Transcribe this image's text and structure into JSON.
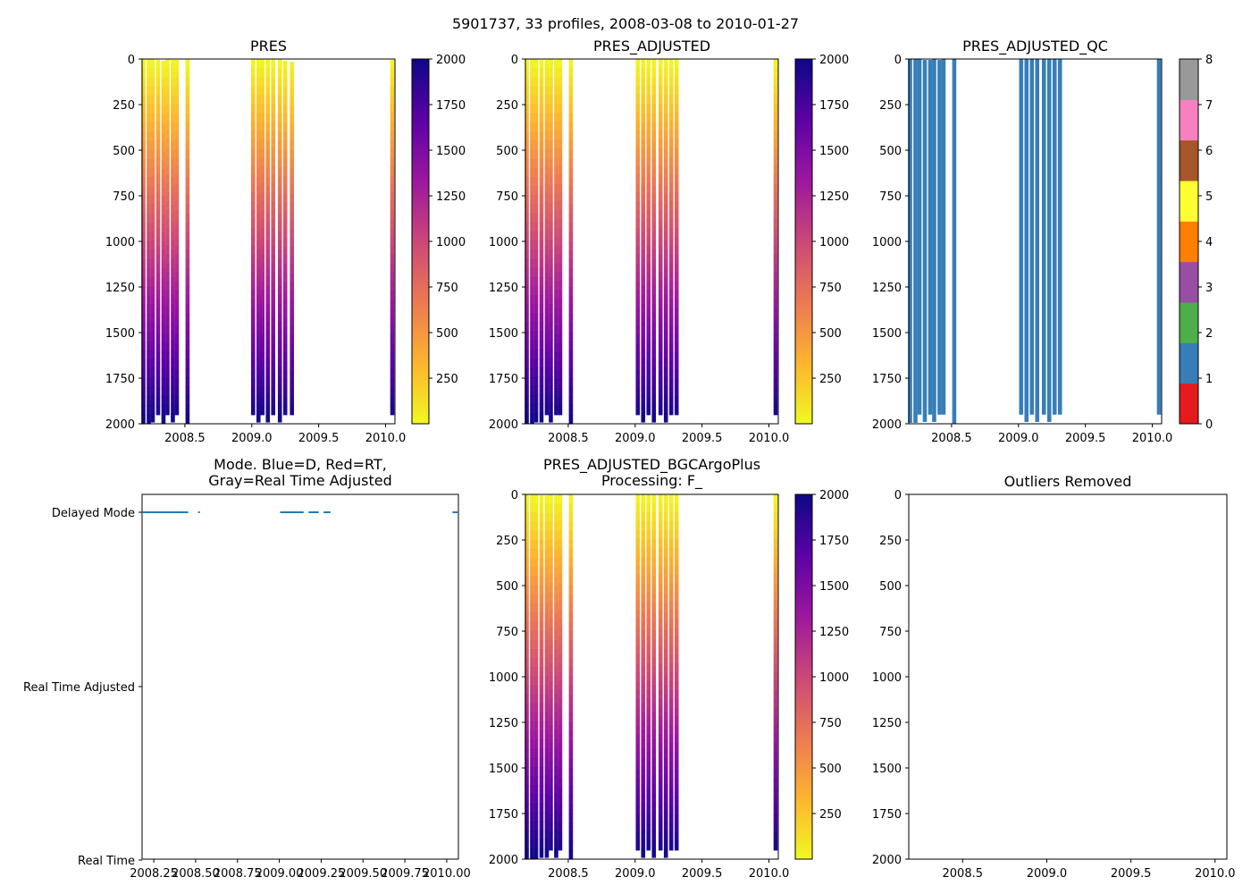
{
  "figure_title": "5901737, 33 profiles, 2008-03-08 to 2010-01-27",
  "colors": {
    "cmap_plasma": [
      "#f0f921",
      "#fdb42f",
      "#ed7953",
      "#cc4778",
      "#9c179e",
      "#5c01a6",
      "#0d0887"
    ],
    "qc_levels": [
      "#e41a1c",
      "#377eb8",
      "#4daf4a",
      "#984ea3",
      "#ff7f00",
      "#ffff33",
      "#a65628",
      "#f781bf",
      "#999999"
    ],
    "mode_delayed": "#1f77b4",
    "qc_fill": "#377eb8"
  },
  "chart_data": [
    {
      "id": "pres",
      "type": "heatmap",
      "title": "PRES",
      "xlim": [
        2008.18,
        2010.07
      ],
      "ylim": [
        2000,
        0
      ],
      "xticks": [
        2008.5,
        2009.0,
        2009.5,
        2010.0
      ],
      "xticklabels": [
        "2008.5",
        "2009.0",
        "2009.5",
        "2010.0"
      ],
      "yticks": [
        0,
        250,
        500,
        750,
        1000,
        1250,
        1500,
        1750,
        2000
      ],
      "yticklabels": [
        "0",
        "250",
        "500",
        "750",
        "1000",
        "1250",
        "1500",
        "1750",
        "2000"
      ],
      "colorbar": {
        "cmap": "plasma_r",
        "vmin": 0,
        "vmax": 2000,
        "ticks": [
          250,
          500,
          750,
          1000,
          1250,
          1500,
          1750,
          2000
        ],
        "ticklabels": [
          "250",
          "500",
          "750",
          "1000",
          "1250",
          "1500",
          "1750",
          "2000"
        ]
      },
      "profiles": [
        {
          "t": 2008.19,
          "top": 0,
          "bottom": 2000
        },
        {
          "t": 2008.23,
          "top": 0,
          "bottom": 2000
        },
        {
          "t": 2008.26,
          "top": 0,
          "bottom": 1990
        },
        {
          "t": 2008.3,
          "top": 5,
          "bottom": 1950
        },
        {
          "t": 2008.34,
          "top": 10,
          "bottom": 1995
        },
        {
          "t": 2008.37,
          "top": 0,
          "bottom": 1950
        },
        {
          "t": 2008.41,
          "top": 5,
          "bottom": 1990
        },
        {
          "t": 2008.44,
          "top": 5,
          "bottom": 1950
        },
        {
          "t": 2008.52,
          "top": 0,
          "bottom": 1995
        },
        {
          "t": 2009.01,
          "top": 0,
          "bottom": 1950
        },
        {
          "t": 2009.05,
          "top": 0,
          "bottom": 1990
        },
        {
          "t": 2009.08,
          "top": 0,
          "bottom": 1950
        },
        {
          "t": 2009.12,
          "top": 0,
          "bottom": 1990
        },
        {
          "t": 2009.16,
          "top": 0,
          "bottom": 1950
        },
        {
          "t": 2009.21,
          "top": 0,
          "bottom": 1990
        },
        {
          "t": 2009.25,
          "top": 10,
          "bottom": 1950
        },
        {
          "t": 2009.3,
          "top": 15,
          "bottom": 1950
        },
        {
          "t": 2010.05,
          "top": 5,
          "bottom": 1950
        }
      ]
    },
    {
      "id": "pres_adjusted",
      "type": "heatmap",
      "title": "PRES_ADJUSTED",
      "xlim": [
        2008.18,
        2010.07
      ],
      "ylim": [
        2000,
        0
      ],
      "xticks": [
        2008.5,
        2009.0,
        2009.5,
        2010.0
      ],
      "xticklabels": [
        "2008.5",
        "2009.0",
        "2009.5",
        "2010.0"
      ],
      "yticks": [
        0,
        250,
        500,
        750,
        1000,
        1250,
        1500,
        1750,
        2000
      ],
      "yticklabels": [
        "0",
        "250",
        "500",
        "750",
        "1000",
        "1250",
        "1500",
        "1750",
        "2000"
      ],
      "colorbar": {
        "cmap": "plasma_r",
        "vmin": 0,
        "vmax": 2000,
        "ticks": [
          250,
          500,
          750,
          1000,
          1250,
          1500,
          1750,
          2000
        ],
        "ticklabels": [
          "250",
          "500",
          "750",
          "1000",
          "1250",
          "1500",
          "1750",
          "2000"
        ]
      },
      "profiles": [
        {
          "t": 2008.19,
          "top": 0,
          "bottom": 1995
        },
        {
          "t": 2008.23,
          "top": 0,
          "bottom": 1995
        },
        {
          "t": 2008.26,
          "top": 0,
          "bottom": 1990
        },
        {
          "t": 2008.3,
          "top": 5,
          "bottom": 1990
        },
        {
          "t": 2008.34,
          "top": 5,
          "bottom": 1950
        },
        {
          "t": 2008.37,
          "top": 0,
          "bottom": 1990
        },
        {
          "t": 2008.41,
          "top": 5,
          "bottom": 1950
        },
        {
          "t": 2008.44,
          "top": 0,
          "bottom": 1950
        },
        {
          "t": 2008.52,
          "top": 0,
          "bottom": 2000
        },
        {
          "t": 2009.02,
          "top": 0,
          "bottom": 1950
        },
        {
          "t": 2009.06,
          "top": 0,
          "bottom": 1990
        },
        {
          "t": 2009.1,
          "top": 0,
          "bottom": 1950
        },
        {
          "t": 2009.14,
          "top": 0,
          "bottom": 1990
        },
        {
          "t": 2009.19,
          "top": 0,
          "bottom": 1950
        },
        {
          "t": 2009.23,
          "top": 0,
          "bottom": 1990
        },
        {
          "t": 2009.27,
          "top": 0,
          "bottom": 1950
        },
        {
          "t": 2009.31,
          "top": 0,
          "bottom": 1950
        },
        {
          "t": 2010.05,
          "top": 0,
          "bottom": 1950
        }
      ]
    },
    {
      "id": "pres_adjusted_qc",
      "type": "heatmap",
      "title": "PRES_ADJUSTED_QC",
      "xlim": [
        2008.18,
        2010.07
      ],
      "ylim": [
        2000,
        0
      ],
      "xticks": [
        2008.5,
        2009.0,
        2009.5,
        2010.0
      ],
      "xticklabels": [
        "2008.5",
        "2009.0",
        "2009.5",
        "2010.0"
      ],
      "yticks": [
        0,
        250,
        500,
        750,
        1000,
        1250,
        1500,
        1750,
        2000
      ],
      "yticklabels": [
        "0",
        "250",
        "500",
        "750",
        "1000",
        "1250",
        "1500",
        "1750",
        "2000"
      ],
      "qc_value": 1,
      "colorbar": {
        "cmap": "qc",
        "vmin": 0,
        "vmax": 8,
        "ticks": [
          0,
          1,
          2,
          3,
          4,
          5,
          6,
          7,
          8
        ],
        "ticklabels": [
          "0",
          "1",
          "2",
          "3",
          "4",
          "5",
          "6",
          "7",
          "8"
        ]
      },
      "profiles": [
        {
          "t": 2008.19,
          "top": 0,
          "bottom": 1995
        },
        {
          "t": 2008.23,
          "top": 0,
          "bottom": 1995
        },
        {
          "t": 2008.26,
          "top": 0,
          "bottom": 1950
        },
        {
          "t": 2008.3,
          "top": 5,
          "bottom": 1990
        },
        {
          "t": 2008.34,
          "top": 5,
          "bottom": 1950
        },
        {
          "t": 2008.37,
          "top": 0,
          "bottom": 1990
        },
        {
          "t": 2008.41,
          "top": 5,
          "bottom": 1950
        },
        {
          "t": 2008.44,
          "top": 0,
          "bottom": 1950
        },
        {
          "t": 2008.52,
          "top": 0,
          "bottom": 2000
        },
        {
          "t": 2009.02,
          "top": 0,
          "bottom": 1950
        },
        {
          "t": 2009.06,
          "top": 0,
          "bottom": 1990
        },
        {
          "t": 2009.1,
          "top": 0,
          "bottom": 1950
        },
        {
          "t": 2009.14,
          "top": 0,
          "bottom": 1990
        },
        {
          "t": 2009.19,
          "top": 0,
          "bottom": 1950
        },
        {
          "t": 2009.23,
          "top": 0,
          "bottom": 1990
        },
        {
          "t": 2009.27,
          "top": 0,
          "bottom": 1950
        },
        {
          "t": 2009.31,
          "top": 0,
          "bottom": 1950
        },
        {
          "t": 2010.05,
          "top": 0,
          "bottom": 1950
        }
      ]
    },
    {
      "id": "mode",
      "type": "scatter",
      "title": [
        "Mode. Blue=D, Red=RT,",
        "Gray=Real Time Adjusted"
      ],
      "xlim": [
        2008.18,
        2010.07
      ],
      "ylim": [
        0,
        2
      ],
      "xticks": [
        2008.25,
        2008.5,
        2008.75,
        2009.0,
        2009.25,
        2009.5,
        2009.75,
        2010.0
      ],
      "xticklabels": [
        "2008.25",
        "2008.50",
        "2008.75",
        "2009.00",
        "2009.25",
        "2009.50",
        "2009.75",
        "2010.00"
      ],
      "yticks": [
        2,
        1,
        0
      ],
      "yticklabels": [
        "Delayed Mode",
        "Real Time Adjusted",
        "Real Time"
      ],
      "points_y": 2,
      "points_x": [
        2008.19,
        2008.2,
        2008.21,
        2008.22,
        2008.23,
        2008.24,
        2008.25,
        2008.26,
        2008.27,
        2008.28,
        2008.29,
        2008.3,
        2008.31,
        2008.32,
        2008.33,
        2008.34,
        2008.35,
        2008.36,
        2008.37,
        2008.38,
        2008.39,
        2008.4,
        2008.41,
        2008.42,
        2008.43,
        2008.44,
        2008.45,
        2008.52,
        2009.01,
        2009.02,
        2009.03,
        2009.04,
        2009.05,
        2009.06,
        2009.07,
        2009.08,
        2009.09,
        2009.1,
        2009.11,
        2009.12,
        2009.13,
        2009.14,
        2009.18,
        2009.19,
        2009.2,
        2009.21,
        2009.22,
        2009.23,
        2009.27,
        2009.28,
        2009.29,
        2009.3,
        2010.04,
        2010.05,
        2010.06
      ]
    },
    {
      "id": "pres_adjusted_bgc",
      "type": "heatmap",
      "title": [
        "PRES_ADJUSTED_BGCArgoPlus",
        "Processing: F_"
      ],
      "xlim": [
        2008.18,
        2010.07
      ],
      "ylim": [
        2000,
        0
      ],
      "xticks": [
        2008.5,
        2009.0,
        2009.5,
        2010.0
      ],
      "xticklabels": [
        "2008.5",
        "2009.0",
        "2009.5",
        "2010.0"
      ],
      "yticks": [
        0,
        250,
        500,
        750,
        1000,
        1250,
        1500,
        1750,
        2000
      ],
      "yticklabels": [
        "0",
        "250",
        "500",
        "750",
        "1000",
        "1250",
        "1500",
        "1750",
        "2000"
      ],
      "colorbar": {
        "cmap": "plasma_r",
        "vmin": 0,
        "vmax": 2000,
        "ticks": [
          250,
          500,
          750,
          1000,
          1250,
          1500,
          1750,
          2000
        ],
        "ticklabels": [
          "250",
          "500",
          "750",
          "1000",
          "1250",
          "1500",
          "1750",
          "2000"
        ]
      },
      "profiles": [
        {
          "t": 2008.19,
          "top": 0,
          "bottom": 1995
        },
        {
          "t": 2008.23,
          "top": 0,
          "bottom": 1995
        },
        {
          "t": 2008.26,
          "top": 0,
          "bottom": 1995
        },
        {
          "t": 2008.3,
          "top": 5,
          "bottom": 1990
        },
        {
          "t": 2008.34,
          "top": 5,
          "bottom": 1990
        },
        {
          "t": 2008.37,
          "top": 0,
          "bottom": 1950
        },
        {
          "t": 2008.41,
          "top": 5,
          "bottom": 1990
        },
        {
          "t": 2008.44,
          "top": 0,
          "bottom": 1950
        },
        {
          "t": 2008.52,
          "top": 0,
          "bottom": 2000
        },
        {
          "t": 2009.02,
          "top": 0,
          "bottom": 1950
        },
        {
          "t": 2009.06,
          "top": 0,
          "bottom": 1990
        },
        {
          "t": 2009.1,
          "top": 0,
          "bottom": 1950
        },
        {
          "t": 2009.14,
          "top": 0,
          "bottom": 1990
        },
        {
          "t": 2009.19,
          "top": 0,
          "bottom": 1950
        },
        {
          "t": 2009.23,
          "top": 0,
          "bottom": 1990
        },
        {
          "t": 2009.27,
          "top": 0,
          "bottom": 1950
        },
        {
          "t": 2009.31,
          "top": 0,
          "bottom": 1950
        },
        {
          "t": 2010.05,
          "top": 0,
          "bottom": 1950
        }
      ]
    },
    {
      "id": "outliers",
      "type": "scatter",
      "title": "Outliers Removed",
      "xlim": [
        2008.18,
        2010.07
      ],
      "ylim": [
        2000,
        0
      ],
      "xticks": [
        2008.5,
        2009.0,
        2009.5,
        2010.0
      ],
      "xticklabels": [
        "2008.5",
        "2009.0",
        "2009.5",
        "2010.0"
      ],
      "yticks": [
        0,
        250,
        500,
        750,
        1000,
        1250,
        1500,
        1750,
        2000
      ],
      "yticklabels": [
        "0",
        "250",
        "500",
        "750",
        "1000",
        "1250",
        "1500",
        "1750",
        "2000"
      ],
      "points_x": []
    }
  ]
}
